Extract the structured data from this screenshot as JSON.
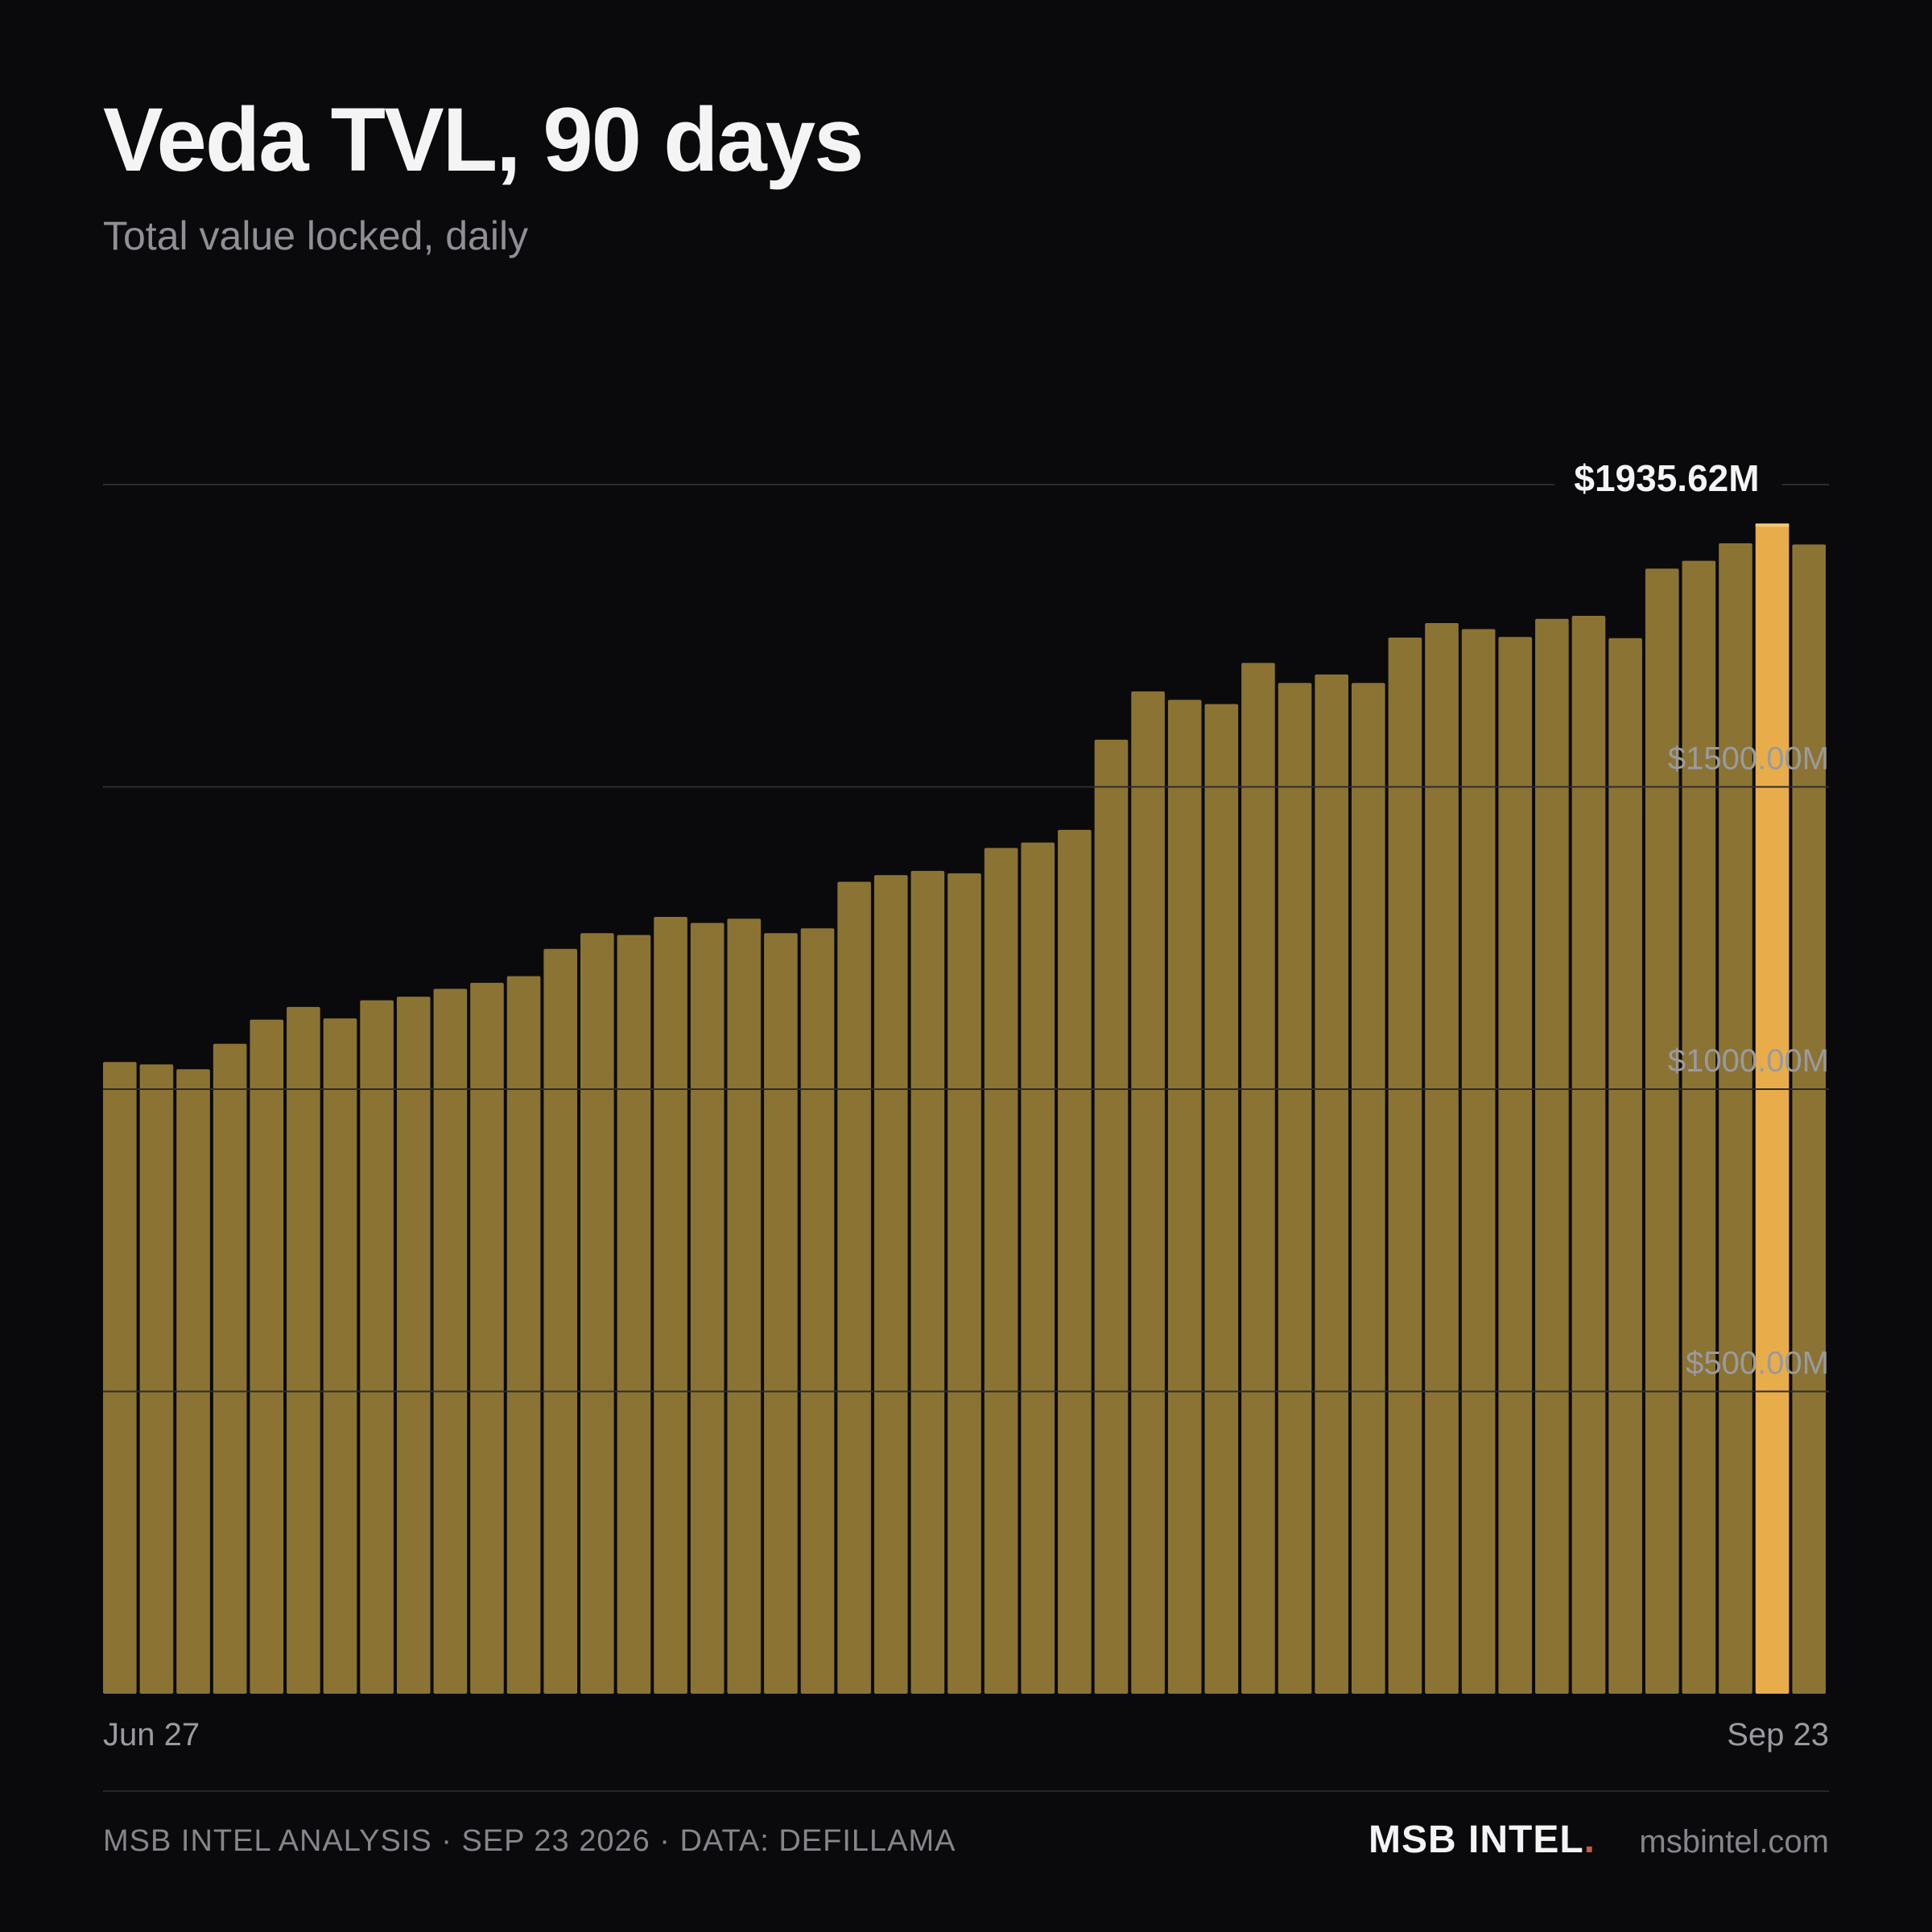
{
  "header": {
    "title": "Veda TVL, 90 days",
    "subtitle": "Total value locked, daily"
  },
  "footer": {
    "left_text": "MSB INTEL ANALYSIS · SEP 23 2026 · DATA: DEFILLAMA",
    "brand": "MSB INTEL",
    "brand_dot": ".",
    "url": "msbintel.com"
  },
  "colors": {
    "background": "#0a0a0c",
    "bar": "#8b7333",
    "bar_highlight": "#e8ad4a",
    "grid": "#2c2c30",
    "tick_text": "#9a9aa0"
  },
  "chart_data": {
    "type": "bar",
    "x_start_label": "Jun 27",
    "x_end_label": "Sep 23",
    "ylim": [
      0,
      2000
    ],
    "yticks": [
      500,
      1000,
      1500
    ],
    "ytick_labels": [
      "$500.00M",
      "$1000.00M",
      "$1500.00M"
    ],
    "grid": true,
    "highlight_index": 45,
    "highlight_label": "$1935.62M",
    "values": [
      1045,
      1041,
      1033,
      1075,
      1115,
      1136,
      1117,
      1147,
      1153,
      1166,
      1176,
      1187,
      1232,
      1258,
      1255,
      1285,
      1275,
      1282,
      1258,
      1266,
      1343,
      1354,
      1361,
      1357,
      1399,
      1408,
      1429,
      1578,
      1658,
      1644,
      1637,
      1705,
      1672,
      1686,
      1672,
      1747,
      1771,
      1761,
      1748,
      1778,
      1783,
      1746,
      1861,
      1874,
      1903,
      1935.62,
      1901
    ]
  }
}
